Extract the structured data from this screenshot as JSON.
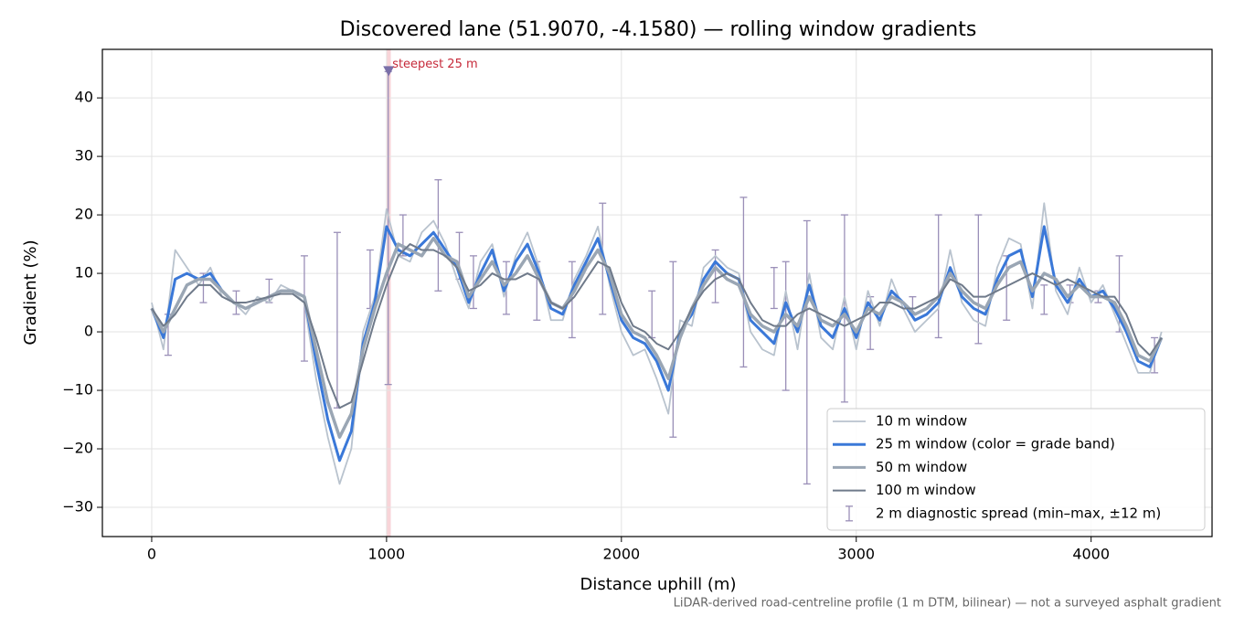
{
  "chart_data": {
    "type": "line",
    "title": "Discovered lane (51.9070, -4.1580) — rolling window gradients",
    "x_label": "Distance uphill (m)",
    "y_label": "Gradient (%)",
    "footnote": "LiDAR-derived road-centreline profile (1 m DTM, bilinear) — not a surveyed asphalt gradient",
    "xlim": [
      -210,
      4515
    ],
    "ylim": [
      -35,
      48.3
    ],
    "xticks": [
      0,
      1000,
      2000,
      3000,
      4000
    ],
    "yticks": [
      {
        "value": -30,
        "label": "−30"
      },
      {
        "value": -20,
        "label": "−20"
      },
      {
        "value": -10,
        "label": "−10"
      },
      0,
      10,
      20,
      30,
      40
    ],
    "grid": true,
    "legend": "lower right",
    "x": [
      0,
      50,
      100,
      150,
      200,
      250,
      300,
      350,
      400,
      450,
      500,
      550,
      600,
      650,
      700,
      750,
      800,
      850,
      900,
      950,
      1000,
      1050,
      1100,
      1150,
      1200,
      1250,
      1300,
      1350,
      1400,
      1450,
      1500,
      1550,
      1600,
      1650,
      1700,
      1750,
      1800,
      1850,
      1900,
      1950,
      2000,
      2050,
      2100,
      2150,
      2200,
      2250,
      2300,
      2350,
      2400,
      2450,
      2500,
      2550,
      2600,
      2650,
      2700,
      2750,
      2800,
      2850,
      2900,
      2950,
      3000,
      3050,
      3100,
      3150,
      3200,
      3250,
      3300,
      3350,
      3400,
      3450,
      3500,
      3550,
      3600,
      3650,
      3700,
      3750,
      3800,
      3850,
      3900,
      3950,
      4000,
      4050,
      4100,
      4150,
      4200,
      4250,
      4300
    ],
    "series": [
      {
        "name": "10 m window",
        "color": "#b9c3ce",
        "width": 1.8,
        "values": [
          5,
          -3,
          14,
          11,
          8,
          11,
          6,
          5,
          3,
          6,
          5,
          8,
          7,
          5,
          -8,
          -18,
          -26,
          -20,
          0,
          6,
          21,
          13,
          12,
          17,
          19,
          15,
          9,
          4,
          12,
          15,
          6,
          13,
          17,
          11,
          2,
          2,
          9,
          13,
          18,
          8,
          0,
          -4,
          -3,
          -8,
          -14,
          2,
          1,
          11,
          13,
          11,
          10,
          0,
          -3,
          -4,
          7,
          -3,
          10,
          -1,
          -3,
          6,
          -3,
          7,
          1,
          9,
          4,
          0,
          2,
          4,
          14,
          5,
          2,
          1,
          11,
          16,
          15,
          4,
          22,
          7,
          3,
          11,
          5,
          8,
          3,
          -2,
          -7,
          -7,
          0
        ]
      },
      {
        "name": "25 m window (color = grade band)",
        "color": "#3a78d8",
        "width": 3,
        "values": [
          4,
          -1,
          9,
          10,
          9,
          10,
          7,
          5,
          4,
          5,
          6,
          7,
          7,
          6,
          -5,
          -15,
          -22,
          -17,
          -2,
          5,
          18,
          14,
          13,
          15,
          17,
          14,
          11,
          5,
          10,
          14,
          7,
          12,
          15,
          10,
          4,
          3,
          8,
          12,
          16,
          9,
          2,
          -1,
          -2,
          -5,
          -10,
          0,
          3,
          9,
          12,
          10,
          9,
          2,
          0,
          -2,
          5,
          0,
          8,
          1,
          -1,
          4,
          -1,
          5,
          2,
          7,
          5,
          2,
          3,
          5,
          11,
          6,
          4,
          3,
          9,
          13,
          14,
          6,
          18,
          8,
          5,
          9,
          6,
          7,
          4,
          0,
          -5,
          -6,
          -1
        ]
      },
      {
        "name": "50 m window",
        "color": "#9aa6b4",
        "width": 3.5,
        "values": [
          4,
          0,
          4,
          8,
          9,
          9,
          7,
          5,
          4,
          5,
          6,
          7,
          7,
          6,
          -3,
          -12,
          -18,
          -14,
          -3,
          4,
          10,
          15,
          14,
          13,
          16,
          13,
          12,
          6,
          9,
          12,
          8,
          10,
          13,
          9,
          5,
          4,
          7,
          11,
          14,
          10,
          3,
          0,
          -1,
          -4,
          -8,
          -1,
          4,
          8,
          11,
          9,
          8,
          3,
          1,
          0,
          3,
          1,
          6,
          2,
          1,
          3,
          0,
          4,
          3,
          6,
          5,
          3,
          4,
          6,
          10,
          7,
          5,
          4,
          8,
          11,
          12,
          7,
          10,
          9,
          6,
          8,
          6,
          6,
          5,
          1,
          -4,
          -5,
          -1
        ]
      },
      {
        "name": "100 m window",
        "color": "#6f7a8a",
        "width": 2,
        "values": [
          4,
          1,
          3,
          6,
          8,
          8,
          6,
          5,
          5,
          5.5,
          6,
          6.5,
          6.5,
          5,
          -1,
          -8,
          -13,
          -12,
          -5,
          2,
          8,
          13,
          15,
          14,
          14,
          13,
          11,
          7,
          8,
          10,
          9,
          9,
          10,
          9,
          5,
          4,
          6,
          9,
          12,
          11,
          5,
          1,
          0,
          -2,
          -3,
          0,
          4,
          7,
          9,
          10,
          9,
          5,
          2,
          1,
          1,
          3,
          4,
          3,
          2,
          1,
          2,
          3,
          5,
          5,
          4,
          4,
          5,
          6,
          9,
          8,
          6,
          6,
          7,
          8,
          9,
          10,
          9,
          8,
          9,
          8,
          7,
          6,
          6,
          3,
          -2,
          -4,
          -1
        ]
      }
    ],
    "errorbars": {
      "name": "2 m diagnostic spread (min–max, ±12 m)",
      "color": "#9a8fb8",
      "x": [
        70,
        220,
        360,
        500,
        650,
        790,
        930,
        1007,
        1070,
        1220,
        1310,
        1370,
        1510,
        1640,
        1790,
        1920,
        2130,
        2220,
        2400,
        2520,
        2650,
        2700,
        2790,
        2950,
        3060,
        3240,
        3350,
        3520,
        3640,
        3800,
        3910,
        4030,
        4120,
        4270
      ],
      "low": [
        -4,
        5,
        3,
        5,
        -5,
        -13,
        4,
        -9,
        13,
        7,
        9,
        4,
        3,
        2,
        -1,
        3,
        -1,
        -18,
        5,
        -6,
        4,
        -10,
        -26,
        -12,
        -3,
        3,
        -1,
        -2,
        2,
        3,
        5,
        5,
        0,
        -7
      ],
      "high": [
        3,
        10,
        7,
        9,
        13,
        17,
        14,
        44.5,
        20,
        26,
        17,
        13,
        12,
        12,
        12,
        22,
        7,
        12,
        14,
        23,
        11,
        12,
        19,
        20,
        6,
        6,
        20,
        20,
        13,
        8,
        8,
        7,
        13,
        -1
      ]
    },
    "highlight": {
      "label": "steepest 25 m",
      "color": "#e8707e",
      "x": [
        1000,
        1018
      ],
      "y": 44.5
    }
  }
}
